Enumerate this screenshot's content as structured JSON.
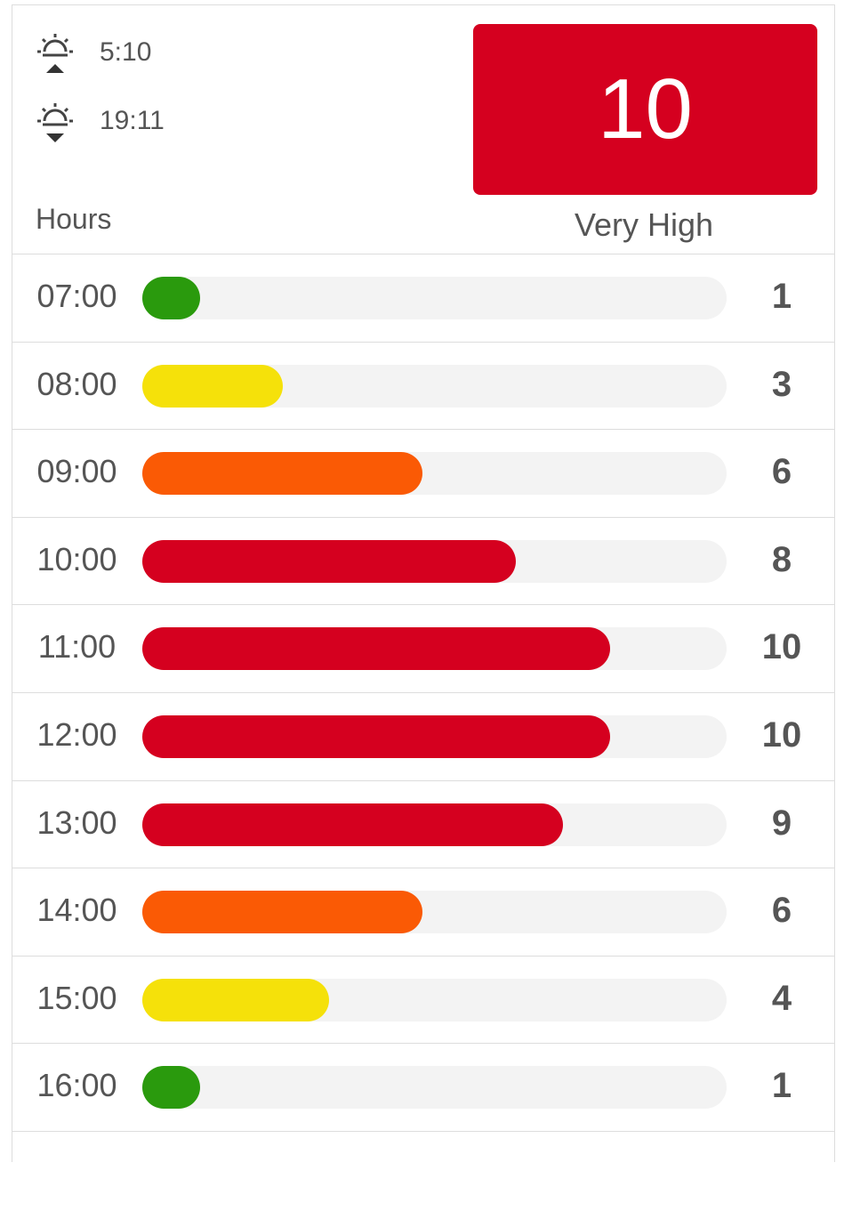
{
  "header": {
    "sunrise": "5:10",
    "sunset": "19:11",
    "uv_index": "10",
    "level": "Very High",
    "hours_label": "Hours"
  },
  "rows": [
    {
      "time": "07:00",
      "value": 1,
      "color": "#2a9a0d"
    },
    {
      "time": "08:00",
      "value": 3,
      "color": "#f5e10a"
    },
    {
      "time": "09:00",
      "value": 6,
      "color": "#fa5a05"
    },
    {
      "time": "10:00",
      "value": 8,
      "color": "#d5001f"
    },
    {
      "time": "11:00",
      "value": 10,
      "color": "#d5001f"
    },
    {
      "time": "12:00",
      "value": 10,
      "color": "#d5001f"
    },
    {
      "time": "13:00",
      "value": 9,
      "color": "#d5001f"
    },
    {
      "time": "14:00",
      "value": 6,
      "color": "#fa5a05"
    },
    {
      "time": "15:00",
      "value": 4,
      "color": "#f5e10a"
    },
    {
      "time": "16:00",
      "value": 1,
      "color": "#2a9a0d"
    }
  ]
}
